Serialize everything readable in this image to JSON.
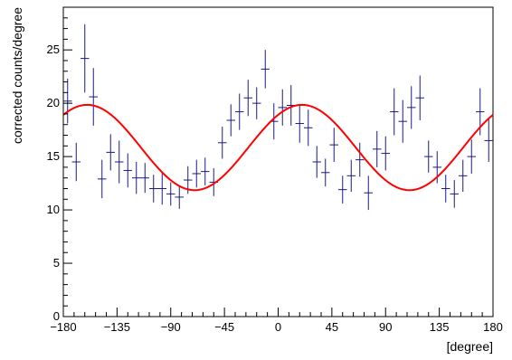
{
  "chart_data": {
    "type": "scatter",
    "title": "",
    "xlabel": "[degree]",
    "ylabel": "corrected counts/degree",
    "xlim": [
      -180,
      180
    ],
    "ylim": [
      0,
      29
    ],
    "xticks": [
      -180,
      -135,
      -90,
      -45,
      0,
      45,
      90,
      135,
      180
    ],
    "yticks": [
      0,
      5,
      10,
      15,
      20,
      25
    ],
    "x_bin_width": 7.2,
    "grid": false,
    "legend": "none",
    "colors": {
      "data": "#1a1a80",
      "fit": "#ff0000",
      "frame": "#000000"
    },
    "series": [
      {
        "kind": "data_with_errors",
        "x": [
          -176.4,
          -169.2,
          -162,
          -154.8,
          -147.6,
          -140.4,
          -133.2,
          -126,
          -118.8,
          -111.6,
          -104.4,
          -97.2,
          -90,
          -82.8,
          -75.6,
          -68.4,
          -61.2,
          -54,
          -46.8,
          -39.6,
          -32.4,
          -25.2,
          -18,
          -10.8,
          -3.6,
          3.6,
          10.8,
          18,
          25.2,
          32.4,
          39.6,
          46.8,
          54,
          61.2,
          68.4,
          75.6,
          82.8,
          90,
          97.2,
          104.4,
          111.6,
          118.8,
          126,
          133.2,
          140.4,
          147.6,
          154.8,
          162,
          169.2,
          176.4
        ],
        "y": [
          20.2,
          14.5,
          24.2,
          20.6,
          12.9,
          15.4,
          14.5,
          13.7,
          13.0,
          13.0,
          12.0,
          12.0,
          11.5,
          11.2,
          12.8,
          13.4,
          13.6,
          12.6,
          16.3,
          18.4,
          19.2,
          20.5,
          20.0,
          23.2,
          18.3,
          19.6,
          19.8,
          18.1,
          17.7,
          14.5,
          13.5,
          16.1,
          11.9,
          13.2,
          14.7,
          11.6,
          15.7,
          15.3,
          19.2,
          18.3,
          19.6,
          20.5,
          15.0,
          14.0,
          12.0,
          11.5,
          13.2,
          15.0,
          19.2,
          16.5
        ],
        "yerr": [
          2.1,
          1.8,
          3.2,
          2.7,
          1.8,
          1.7,
          2.0,
          1.6,
          1.5,
          1.4,
          1.3,
          1.5,
          1.1,
          1.1,
          1.3,
          1.3,
          1.3,
          1.3,
          1.5,
          1.5,
          1.7,
          1.7,
          1.5,
          1.8,
          1.7,
          1.7,
          1.9,
          1.8,
          1.7,
          1.5,
          1.3,
          1.6,
          1.3,
          1.5,
          1.6,
          1.6,
          1.7,
          1.6,
          2.2,
          2.0,
          2.0,
          2.1,
          1.5,
          1.5,
          1.3,
          1.3,
          1.5,
          1.6,
          2.2,
          2.0
        ]
      },
      {
        "kind": "fit_curve",
        "function": "mean + amplitude * cos(2 * (x - phase_deg))",
        "mean": 15.85,
        "amplitude": 4.0,
        "phase_deg": 20
      }
    ]
  }
}
